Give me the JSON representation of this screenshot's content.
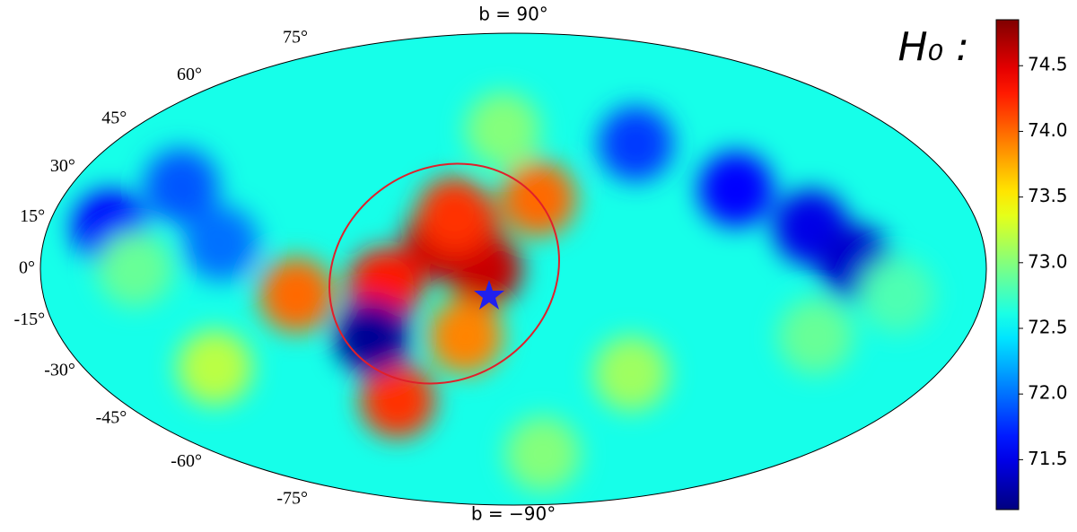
{
  "chart_data": {
    "type": "skymap",
    "projection": "mollweide",
    "top_label": "b = 90°",
    "bottom_label": "b = −90°",
    "colorbar_label": "H₀ :",
    "colormap": "jet",
    "clim": [
      71.12,
      74.85
    ],
    "cticks": [
      71.5,
      {
        "value": 72,
        "label": "72.0"
      },
      72.5,
      {
        "value": 73,
        "label": "73.0"
      },
      73.5,
      {
        "value": 74,
        "label": "74.0"
      },
      74.5
    ],
    "lat_ticks": [
      {
        "value": 75,
        "label": "75°"
      },
      {
        "value": 60,
        "label": "60°"
      },
      {
        "value": 45,
        "label": "45°"
      },
      {
        "value": 30,
        "label": "30°"
      },
      {
        "value": 15,
        "label": "15°"
      },
      {
        "value": 0,
        "label": "0°"
      },
      {
        "value": -15,
        "label": "-15°"
      },
      {
        "value": -30,
        "label": "-30°"
      },
      {
        "value": -45,
        "label": "-45°"
      },
      {
        "value": -60,
        "label": "-60°"
      },
      {
        "value": -75,
        "label": "-75°"
      }
    ],
    "base_value": 72.6,
    "field": [
      {
        "lon": -28,
        "lat": 8,
        "value": 74.6
      },
      {
        "lon": -11,
        "lat": 0,
        "value": 74.6
      },
      {
        "lon": -20,
        "lat": 14,
        "value": 74.5
      },
      {
        "lon": -49,
        "lat": -5,
        "value": 74.3
      },
      {
        "lon": 10,
        "lat": 22,
        "value": 74.0
      },
      {
        "lon": -23,
        "lat": 17,
        "value": 74.2
      },
      {
        "lon": -83,
        "lat": -8,
        "value": 74.0
      },
      {
        "lon": -53,
        "lat": -42,
        "value": 74.2
      },
      {
        "lon": -56,
        "lat": -21,
        "value": 71.2
      },
      {
        "lon": -19,
        "lat": -21,
        "value": 73.9
      },
      {
        "lon": 115,
        "lat": 13,
        "value": 71.5
      },
      {
        "lon": 90,
        "lat": 25,
        "value": 71.6
      },
      {
        "lon": 55,
        "lat": 40,
        "value": 71.8
      },
      {
        "lon": -135,
        "lat": 26,
        "value": 71.9
      },
      {
        "lon": -156,
        "lat": 13,
        "value": 71.6
      },
      {
        "lon": -112,
        "lat": 8,
        "value": 72.0
      },
      {
        "lon": 130,
        "lat": 2,
        "value": 71.4
      },
      {
        "lon": 50,
        "lat": -33,
        "value": 73.1
      },
      {
        "lon": -125,
        "lat": -31,
        "value": 73.2
      },
      {
        "lon": 120,
        "lat": -21,
        "value": 72.9
      },
      {
        "lon": 18,
        "lat": -62,
        "value": 73.0
      },
      {
        "lon": -5,
        "lat": 45,
        "value": 73.0
      },
      {
        "lon": -144,
        "lat": 0,
        "value": 72.9
      },
      {
        "lon": 147,
        "lat": -8,
        "value": 72.8
      }
    ]
  }
}
